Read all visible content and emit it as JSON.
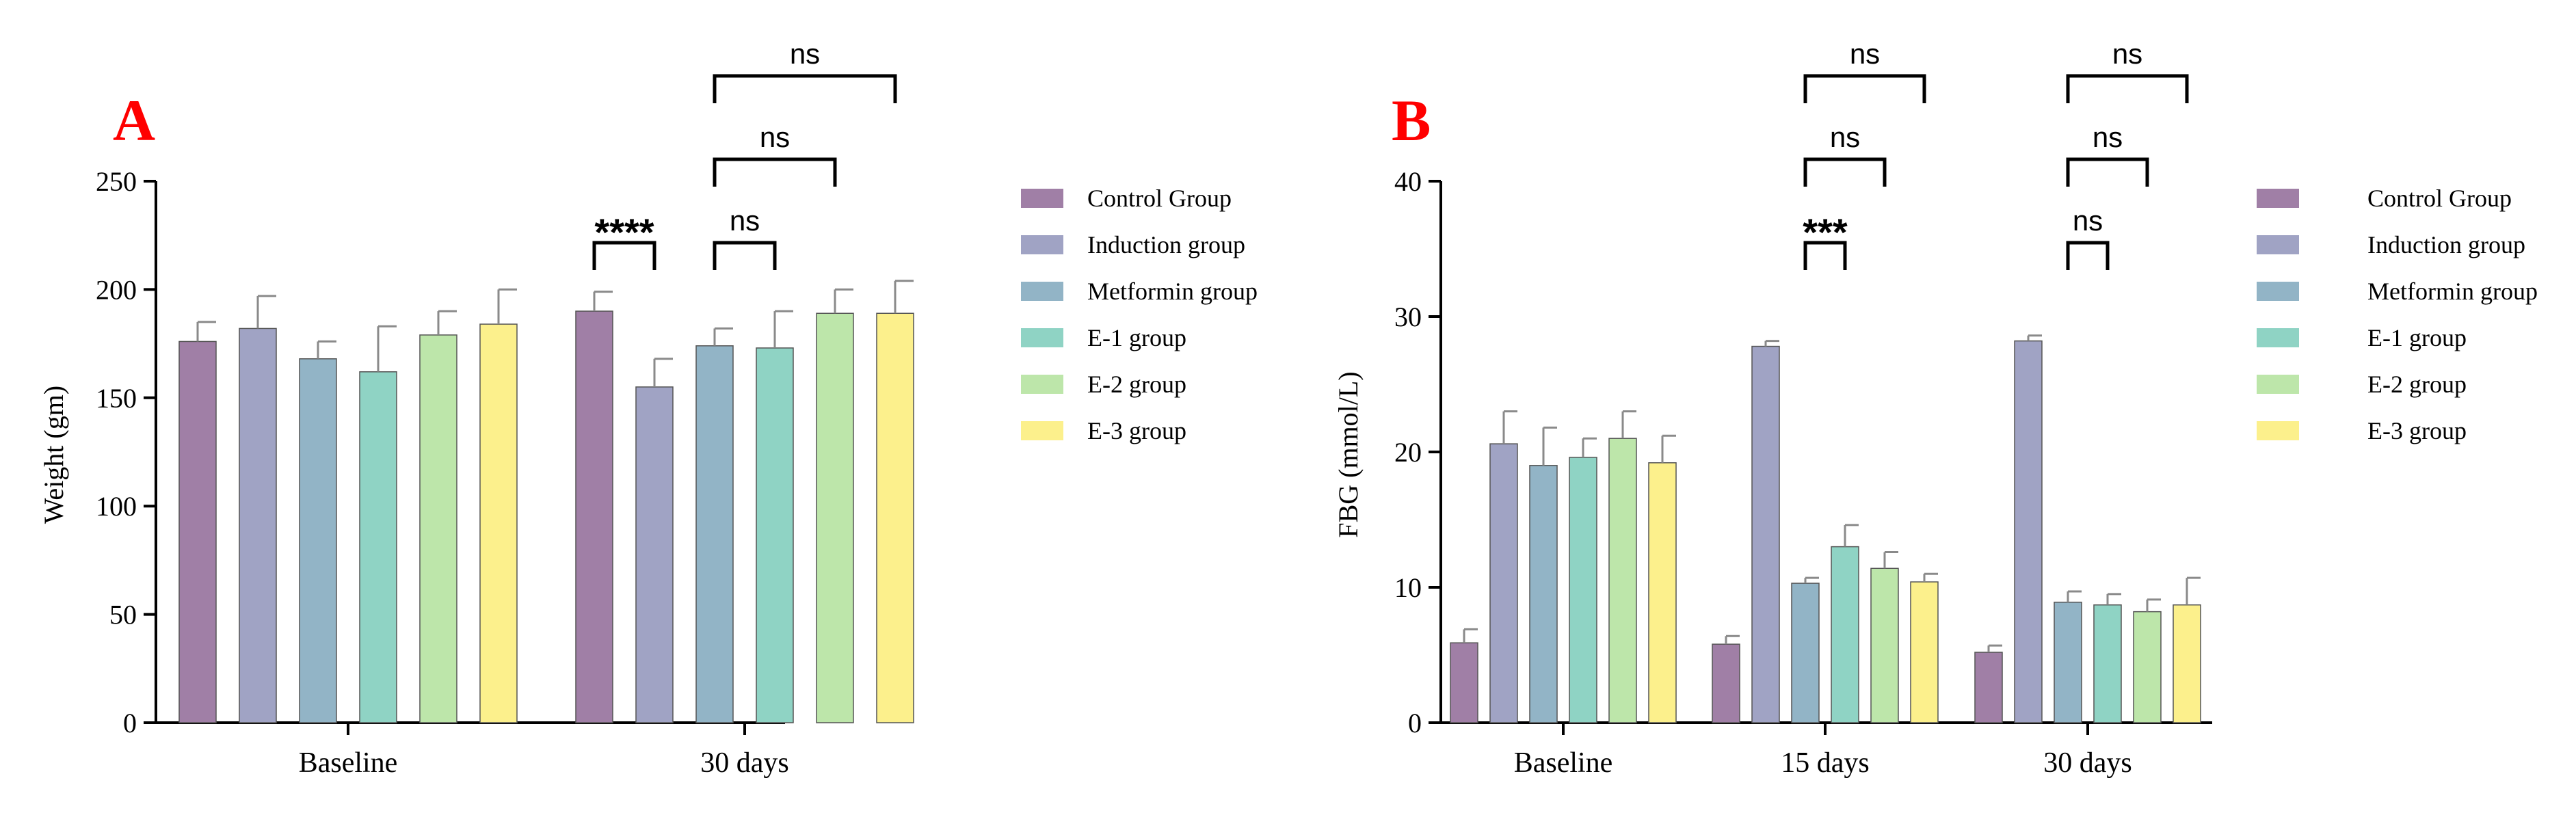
{
  "colors": [
    "#a07fa6",
    "#a0a3c4",
    "#92b4c6",
    "#8fd3c4",
    "#bde6aa",
    "#fcf08c"
  ],
  "groups": [
    "Control Group",
    "Induction group",
    "Metformin group",
    "E-1 group",
    "E-2 group",
    "E-3 group"
  ],
  "chart_data": [
    {
      "panel": "A",
      "type": "bar",
      "ylabel": "Weight (gm)",
      "ylim": [
        0,
        250
      ],
      "yticks": [
        0,
        50,
        100,
        150,
        200,
        250
      ],
      "categories": [
        "Baseline",
        "30 days"
      ],
      "series": [
        {
          "name": "Control Group",
          "values": [
            176,
            190
          ],
          "errors": [
            9,
            9
          ]
        },
        {
          "name": "Induction group",
          "values": [
            182,
            155
          ],
          "errors": [
            15,
            13
          ]
        },
        {
          "name": "Metformin group",
          "values": [
            168,
            174
          ],
          "errors": [
            8,
            8
          ]
        },
        {
          "name": "E-1 group",
          "values": [
            162,
            173
          ],
          "errors": [
            21,
            17
          ]
        },
        {
          "name": "E-2 group",
          "values": [
            179,
            189
          ],
          "errors": [
            11,
            11
          ]
        },
        {
          "name": "E-3 group",
          "values": [
            184,
            189
          ],
          "errors": [
            16,
            15
          ]
        }
      ],
      "annotations": [
        {
          "category": 1,
          "from": 0,
          "to": 1,
          "label": "****",
          "level": 0
        },
        {
          "category": 1,
          "from": 2,
          "to": 3,
          "label": "ns",
          "level": 0
        },
        {
          "category": 1,
          "from": 2,
          "to": 4,
          "label": "ns",
          "level": 1
        },
        {
          "category": 1,
          "from": 2,
          "to": 5,
          "label": "ns",
          "level": 2
        }
      ]
    },
    {
      "panel": "B",
      "type": "bar",
      "ylabel": "FBG (mmol/L)",
      "ylim": [
        0,
        40
      ],
      "yticks": [
        0,
        10,
        20,
        30,
        40
      ],
      "categories": [
        "Baseline",
        "15 days",
        "30 days"
      ],
      "series": [
        {
          "name": "Control Group",
          "values": [
            5.9,
            5.8,
            5.2
          ],
          "errors": [
            1.0,
            0.6,
            0.5
          ]
        },
        {
          "name": "Induction group",
          "values": [
            20.6,
            27.8,
            28.2
          ],
          "errors": [
            2.4,
            0.4,
            0.4
          ]
        },
        {
          "name": "Metformin group",
          "values": [
            19.0,
            10.3,
            8.9
          ],
          "errors": [
            2.8,
            0.4,
            0.8
          ]
        },
        {
          "name": "E-1 group",
          "values": [
            19.6,
            13.0,
            8.7
          ],
          "errors": [
            1.4,
            1.6,
            0.8
          ]
        },
        {
          "name": "E-2 group",
          "values": [
            21.0,
            11.4,
            8.2
          ],
          "errors": [
            2.0,
            1.2,
            0.9
          ]
        },
        {
          "name": "E-3 group",
          "values": [
            19.2,
            10.4,
            8.7
          ],
          "errors": [
            2.0,
            0.6,
            2.0
          ]
        }
      ],
      "annotations": [
        {
          "category": 1,
          "from": 2,
          "to": 3,
          "label": "***",
          "level": 0
        },
        {
          "category": 1,
          "from": 2,
          "to": 4,
          "label": "ns",
          "level": 1
        },
        {
          "category": 1,
          "from": 2,
          "to": 5,
          "label": "ns",
          "level": 2
        },
        {
          "category": 2,
          "from": 2,
          "to": 3,
          "label": "ns",
          "level": 0
        },
        {
          "category": 2,
          "from": 2,
          "to": 4,
          "label": "ns",
          "level": 1
        },
        {
          "category": 2,
          "from": 2,
          "to": 5,
          "label": "ns",
          "level": 2
        }
      ]
    }
  ]
}
